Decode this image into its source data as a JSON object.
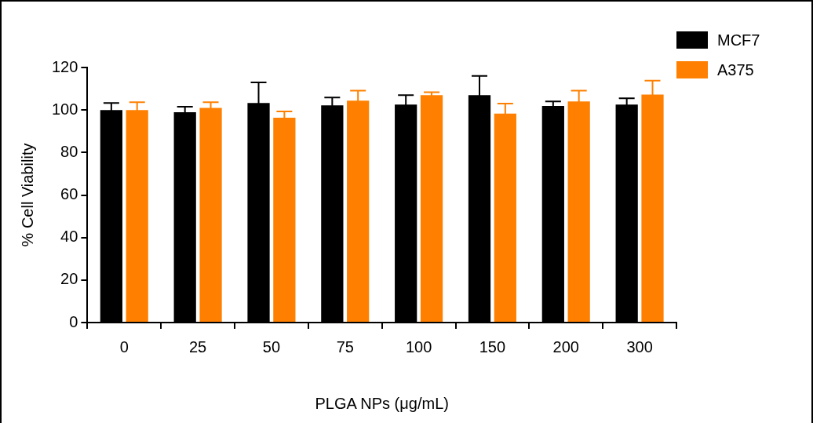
{
  "chart_data": {
    "type": "bar",
    "xlabel": "PLGA NPs (μg/mL)",
    "ylabel": "% Cell Viability",
    "categories": [
      "0",
      "25",
      "50",
      "75",
      "100",
      "150",
      "200",
      "300"
    ],
    "series": [
      {
        "name": "MCF7",
        "color": "#000000",
        "values": [
          100,
          99,
          103.3,
          102.2,
          102.6,
          107,
          101.9,
          102.6
        ],
        "errors": [
          3.3,
          2.5,
          9.7,
          3.7,
          4.4,
          9,
          2.1,
          2.9
        ]
      },
      {
        "name": "A375",
        "color": "#ff8000",
        "values": [
          100,
          101,
          96.4,
          104.4,
          107,
          98.3,
          104,
          107.3
        ],
        "errors": [
          3.7,
          2.7,
          2.9,
          4.7,
          1.4,
          4.7,
          5.1,
          6.5
        ]
      }
    ],
    "ylim": [
      0,
      120
    ],
    "yticks": [
      0,
      20,
      40,
      60,
      80,
      100,
      120
    ],
    "grid": false,
    "legend": "top right"
  }
}
